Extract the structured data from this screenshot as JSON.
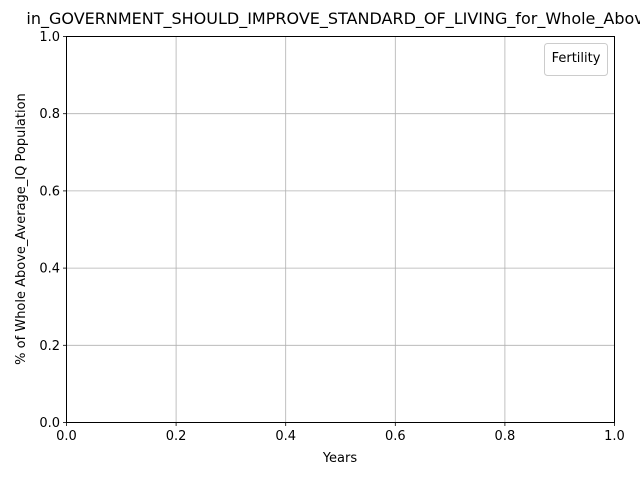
{
  "chart_data": {
    "type": "line",
    "title": "in_GOVERNMENT_SHOULD_IMPROVE_STANDARD_OF_LIVING_for_Whole_Above",
    "xlabel": "Years",
    "ylabel": "% of Whole Above_Average_IQ Population",
    "xlim": [
      0.0,
      1.0
    ],
    "ylim": [
      0.0,
      1.0
    ],
    "x_ticks": [
      "0.0",
      "0.2",
      "0.4",
      "0.6",
      "0.8",
      "1.0"
    ],
    "y_ticks": [
      "0.0",
      "0.2",
      "0.4",
      "0.6",
      "0.8",
      "1.0"
    ],
    "grid": true,
    "legend": {
      "title": "Fertility",
      "placement": "top-right",
      "entries": []
    },
    "series": []
  }
}
